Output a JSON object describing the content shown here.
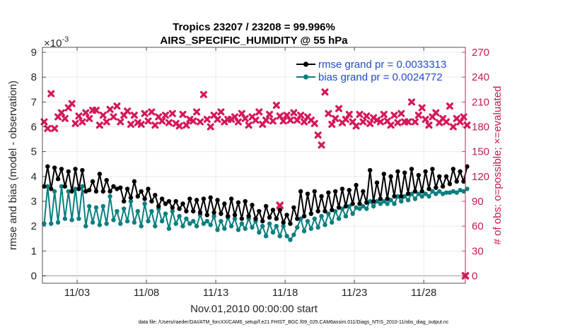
{
  "chart_data": {
    "type": "line",
    "title_line1": "Tropics 23207 / 23208 = 99.996%",
    "title_line2": "AIRS_SPECIFIC_HUMIDITY @ 55 hPa",
    "xlabel": "Nov.01,2010 00:00:00 start",
    "ylabel": "rmse and bias (model - observation)",
    "y2label": "# of obs: o=possible; ×=evaluated",
    "y_exponent_label": "×10",
    "y_exponent_power": "-3",
    "footer": "data file: /Users/raeder/DAI/ATM_forcXX/CAM6_setup/f.e21.FHIST_BGC.f09_025.CAM6assim.011/Diags_NTrS_2010-11/obs_diag_output.nc",
    "xlim": [
      0.5,
      31.0
    ],
    "ylim": [
      -0.3,
      9.2
    ],
    "y2lim": [
      -9,
      276
    ],
    "x_ticks": [
      3,
      8,
      13,
      18,
      23,
      28
    ],
    "x_tick_labels": [
      "11/03",
      "11/08",
      "11/13",
      "11/18",
      "11/23",
      "11/28"
    ],
    "y_ticks": [
      0,
      1,
      2,
      3,
      4,
      5,
      6,
      7,
      8,
      9
    ],
    "y_tick_labels": [
      "0",
      "1",
      "2",
      "3",
      "4",
      "5",
      "6",
      "7",
      "8",
      "9"
    ],
    "y2_ticks": [
      0,
      30,
      60,
      90,
      120,
      150,
      180,
      210,
      240,
      270
    ],
    "y2_tick_labels": [
      "0",
      "30",
      "60",
      "90",
      "120",
      "150",
      "180",
      "210",
      "240",
      "270"
    ],
    "legend": {
      "location": "top-right",
      "entries": [
        "rmse grand pr = 0.0033313",
        "bias grand pr = 0.0024772"
      ]
    },
    "colors": {
      "rmse": "#000000",
      "bias": "#0b7f7f",
      "obs": "#d6175a",
      "axis_right": "#c8184c",
      "legend_text": "#1f4ecc",
      "grid": "#e6e6e6"
    },
    "series": [
      {
        "name": "rmse",
        "x_start": 0.625,
        "x_step": 0.25,
        "values": [
          3.6,
          4.4,
          3.5,
          4.35,
          3.9,
          4.3,
          3.6,
          4.2,
          3.4,
          4.3,
          3.5,
          4.25,
          3.4,
          3.45,
          3.8,
          3.4,
          4.1,
          3.4,
          3.85,
          3.4,
          3.6,
          3.5,
          3.55,
          3.0,
          3.5,
          3.15,
          3.8,
          3.2,
          3.4,
          3.1,
          3.5,
          3.0,
          3.25,
          2.8,
          3.1,
          2.9,
          3.0,
          2.75,
          3.0,
          2.7,
          2.9,
          2.6,
          3.1,
          2.6,
          3.05,
          2.55,
          3.1,
          2.45,
          3.15,
          2.55,
          3.05,
          2.5,
          2.9,
          2.4,
          3.1,
          2.45,
          2.95,
          2.3,
          3.0,
          2.4,
          2.85,
          2.3,
          2.6,
          2.2,
          2.8,
          2.35,
          2.65,
          2.3,
          2.65,
          2.15,
          2.45,
          2.1,
          2.75,
          2.3,
          3.4,
          2.4,
          3.3,
          2.5,
          3.4,
          2.6,
          3.2,
          2.6,
          3.35,
          2.65,
          3.4,
          2.75,
          3.5,
          2.8,
          3.45,
          2.9,
          3.65,
          2.9,
          3.4,
          2.95,
          4.25,
          3.0,
          3.75,
          3.1,
          4.1,
          3.1,
          4.0,
          3.2,
          4.2,
          3.2,
          4.15,
          3.3,
          4.3,
          3.4,
          4.05,
          3.4,
          4.2,
          3.5,
          4.3,
          3.55,
          4.0,
          3.6,
          4.0,
          3.7,
          4.3,
          3.8,
          4.2,
          3.8,
          4.4
        ]
      },
      {
        "name": "bias",
        "x_start": 0.625,
        "x_step": 0.25,
        "values": [
          2.1,
          3.6,
          2.1,
          3.4,
          2.15,
          3.6,
          2.3,
          3.4,
          2.25,
          3.5,
          2.3,
          3.6,
          2.0,
          2.8,
          2.15,
          2.75,
          2.05,
          2.8,
          2.1,
          3.2,
          2.25,
          2.6,
          2.1,
          2.7,
          2.2,
          3.0,
          2.15,
          2.6,
          2.0,
          2.9,
          2.2,
          2.6,
          2.0,
          2.7,
          2.2,
          2.5,
          1.9,
          2.6,
          2.1,
          2.4,
          2.0,
          2.3,
          2.1,
          2.2,
          2.0,
          2.45,
          2.1,
          2.2,
          2.05,
          2.4,
          1.85,
          2.2,
          1.9,
          2.35,
          2.0,
          2.3,
          1.85,
          2.1,
          1.9,
          2.3,
          1.95,
          2.2,
          1.75,
          2.0,
          1.6,
          2.1,
          1.75,
          2.0,
          1.6,
          2.0,
          1.6,
          1.45,
          1.65,
          1.95,
          2.3,
          1.8,
          2.2,
          1.9,
          2.3,
          1.95,
          2.4,
          2.05,
          2.5,
          2.15,
          2.6,
          2.3,
          2.7,
          2.4,
          2.8,
          2.5,
          2.75,
          2.7,
          2.8,
          2.7,
          3.0,
          2.8,
          3.0,
          2.9,
          3.0,
          2.9,
          3.05,
          2.9,
          3.2,
          3.0,
          3.2,
          3.05,
          3.3,
          3.1,
          3.3,
          3.2,
          3.3,
          3.2,
          3.4,
          3.3,
          3.4,
          3.3,
          3.35,
          3.35,
          3.4,
          3.35,
          3.45,
          3.4,
          3.5
        ]
      },
      {
        "name": "obs_count",
        "axis": "right",
        "x_start": 0.625,
        "x_step": 0.25,
        "values": [
          186,
          178,
          220,
          178,
          192,
          197,
          190,
          203,
          208,
          184,
          193,
          186,
          197,
          190,
          200,
          200,
          182,
          194,
          186,
          201,
          192,
          205,
          186,
          194,
          199,
          183,
          194,
          185,
          183,
          196,
          187,
          198,
          182,
          192,
          187,
          194,
          185,
          196,
          184,
          181,
          195,
          182,
          189,
          187,
          198,
          186,
          219,
          189,
          180,
          194,
          189,
          198,
          186,
          189,
          189,
          192,
          186,
          196,
          190,
          182,
          192,
          188,
          198,
          183,
          188,
          195,
          187,
          206,
          193,
          187,
          194,
          188,
          197,
          188,
          194,
          186,
          192,
          188,
          184,
          170,
          158,
          222,
          196,
          183,
          190,
          202,
          185,
          189,
          195,
          186,
          181,
          195,
          186,
          193,
          184,
          191,
          188,
          186,
          195,
          187,
          182,
          194,
          185,
          196,
          186,
          186,
          210,
          186,
          194,
          203,
          189,
          182,
          192,
          197,
          185,
          190,
          186,
          205,
          180,
          190,
          186,
          192,
          182
        ]
      }
    ],
    "annotations": [
      {
        "text": "right-axis outlier near day 18",
        "x": 17.625,
        "y2": 85
      },
      {
        "text": "zero-count marker at end",
        "x": 31.0,
        "y2": 0
      }
    ]
  }
}
